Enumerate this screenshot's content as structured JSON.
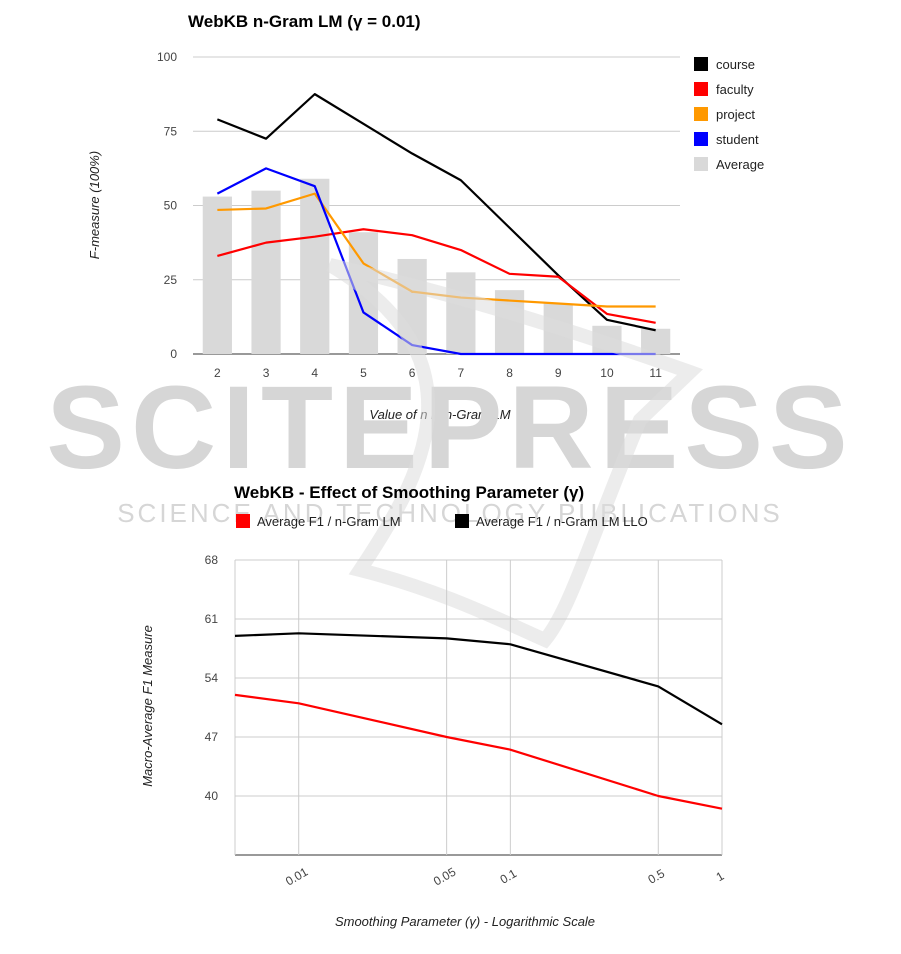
{
  "watermark": {
    "brand": "SCITEPRESS",
    "tagline": "SCIENCE AND TECHNOLOGY PUBLICATIONS"
  },
  "chart_data": [
    {
      "type": "bar+line",
      "title": "WebKB n-Gram LM (γ = 0.01)",
      "xlabel": "Value of n in n-Gram LM",
      "ylabel": "F-measure (100%)",
      "ylim": [
        0,
        100
      ],
      "yticks": [
        "0",
        "25",
        "50",
        "75",
        "100"
      ],
      "categories": [
        "2",
        "3",
        "4",
        "5",
        "6",
        "7",
        "8",
        "9",
        "10",
        "11"
      ],
      "bar_series": {
        "name": "Average",
        "color": "#d9d9d9",
        "values": [
          53,
          55,
          59,
          41,
          32,
          27.5,
          21.5,
          17,
          9.5,
          8.5
        ]
      },
      "series": [
        {
          "name": "course",
          "color": "#000000",
          "values": [
            79,
            72.5,
            87.5,
            77.5,
            67.5,
            58.5,
            42.5,
            26.5,
            11.5,
            8
          ]
        },
        {
          "name": "faculty",
          "color": "#ff0000",
          "values": [
            33,
            37.5,
            39.5,
            42,
            40,
            35,
            27,
            26,
            13.5,
            10.5
          ]
        },
        {
          "name": "project",
          "color": "#ff9900",
          "values": [
            48.5,
            49,
            54,
            30.5,
            21,
            19,
            18,
            17,
            16,
            16
          ]
        },
        {
          "name": "student",
          "color": "#0000ff",
          "values": [
            54,
            62.5,
            56.5,
            14,
            3,
            0,
            0,
            0,
            0,
            0
          ]
        }
      ],
      "legend": [
        "course",
        "faculty",
        "project",
        "student",
        "Average"
      ],
      "legend_position": "right"
    },
    {
      "type": "line",
      "title": "WebKB - Effect of Smoothing Parameter (γ)",
      "xlabel": "Smoothing Parameter (γ) - Logarithmic Scale",
      "ylabel": "Macro-Average F1 Measure",
      "x_scale": "log",
      "xlim": [
        0.005,
        1
      ],
      "xticks": [
        "0.01",
        "0.05",
        "0.1",
        "0.5",
        "1"
      ],
      "ylim": [
        33,
        68
      ],
      "yticks": [
        "40",
        "47",
        "54",
        "61",
        "68"
      ],
      "x": [
        0.005,
        0.01,
        0.05,
        0.1,
        0.5,
        1
      ],
      "series": [
        {
          "name": "Average F1 / n-Gram LM",
          "color": "#ff0000",
          "values": [
            52,
            51,
            47,
            45.5,
            40,
            38.5
          ]
        },
        {
          "name": "Average F1 / n-Gram LM LLO",
          "color": "#000000",
          "values": [
            59,
            59.3,
            58.7,
            58,
            53,
            48.5
          ]
        }
      ],
      "legend_position": "top"
    }
  ]
}
